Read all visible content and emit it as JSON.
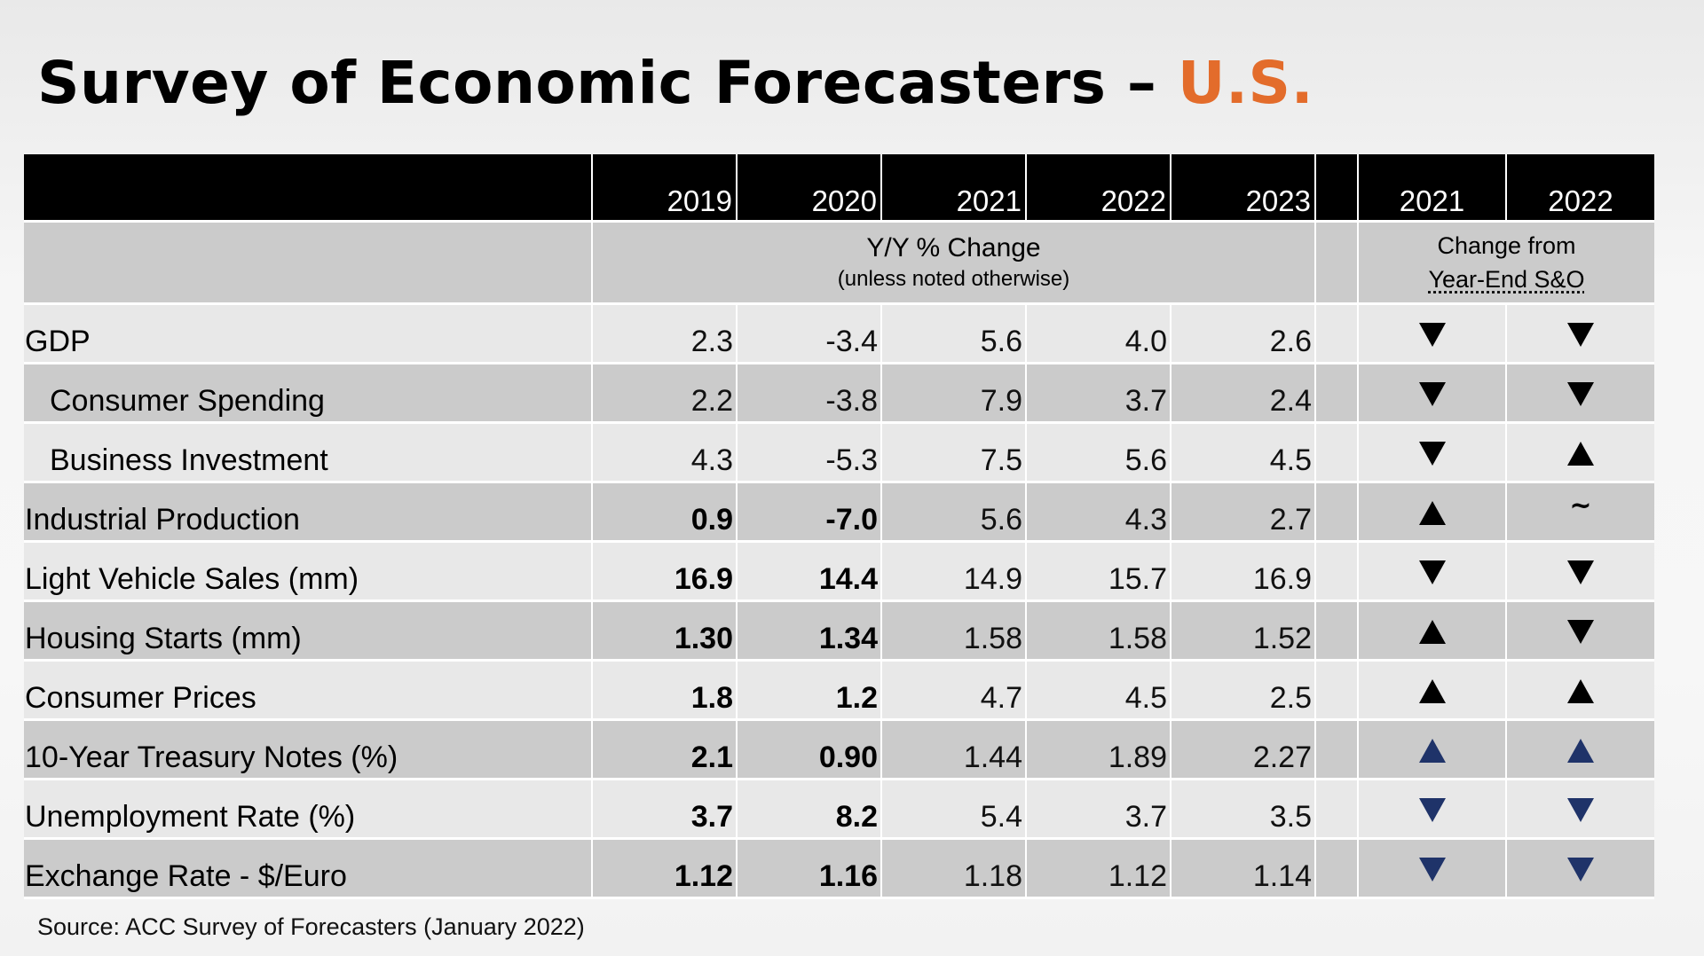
{
  "title": {
    "main": "Survey of Economic Forecasters – ",
    "accent": "U.S."
  },
  "colors": {
    "accent": "#e36c2b",
    "header_bg": "#000000",
    "row_light": "#e8e8e8",
    "row_dark": "#cbcbcb",
    "arrow_black": "#000000",
    "arrow_blue": "#1f3369"
  },
  "table": {
    "years": [
      "2019",
      "2020",
      "2021",
      "2022",
      "2023"
    ],
    "change_years": [
      "2021",
      "2022"
    ],
    "subheader": {
      "main": "Y/Y % Change",
      "note": "(unless noted otherwise)",
      "change_line1": "Change from",
      "change_line2": "Year-End S&O"
    },
    "rows": [
      {
        "label": "GDP",
        "values": [
          "2.3",
          "-3.4",
          "5.6",
          "4.0",
          "2.6"
        ],
        "change": [
          "down-icon",
          "down-icon"
        ]
      },
      {
        "label": "Consumer Spending",
        "values": [
          "2.2",
          "-3.8",
          "7.9",
          "3.7",
          "2.4"
        ],
        "change": [
          "down-icon",
          "down-icon"
        ]
      },
      {
        "label": "Business Investment",
        "values": [
          "4.3",
          "-5.3",
          "7.5",
          "5.6",
          "4.5"
        ],
        "change": [
          "down-icon",
          "up-icon"
        ]
      },
      {
        "label": "Industrial Production",
        "values": [
          "0.9",
          "-7.0",
          "5.6",
          "4.3",
          "2.7"
        ],
        "change": [
          "up-icon",
          "~"
        ]
      },
      {
        "label": "Light Vehicle Sales (mm)",
        "values": [
          "16.9",
          "14.4",
          "14.9",
          "15.7",
          "16.9"
        ],
        "change": [
          "down-icon",
          "down-icon"
        ]
      },
      {
        "label": "Housing Starts (mm)",
        "values": [
          "1.30",
          "1.34",
          "1.58",
          "1.58",
          "1.52"
        ],
        "change": [
          "up-icon",
          "down-icon"
        ]
      },
      {
        "label": "Consumer Prices",
        "values": [
          "1.8",
          "1.2",
          "4.7",
          "4.5",
          "2.5"
        ],
        "change": [
          "up-icon",
          "up-icon"
        ]
      },
      {
        "label": "10-Year Treasury Notes (%)",
        "values": [
          "2.1",
          "0.90",
          "1.44",
          "1.89",
          "2.27"
        ],
        "change": [
          "up-icon",
          "up-icon"
        ]
      },
      {
        "label": "Unemployment Rate (%)",
        "values": [
          "3.7",
          "8.2",
          "5.4",
          "3.7",
          "3.5"
        ],
        "change": [
          "down-icon",
          "down-icon"
        ]
      },
      {
        "label": "Exchange Rate - $/Euro",
        "values": [
          "1.12",
          "1.16",
          "1.18",
          "1.12",
          "1.14"
        ],
        "change": [
          "down-icon",
          "down-icon"
        ]
      }
    ]
  },
  "source": "Source: ACC Survey of Forecasters (January 2022)"
}
